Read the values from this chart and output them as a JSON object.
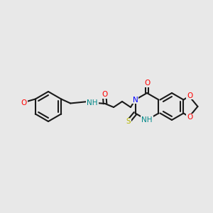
{
  "background_color": "#ebebeb",
  "bond_color": "#1a1a1a",
  "atom_colors": {
    "N": "#0000ff",
    "O": "#ff0000",
    "S": "#cccc00",
    "H_on_N": "#00aaaa",
    "C": "#1a1a1a"
  },
  "figsize": [
    3.0,
    3.0
  ],
  "dpi": 100
}
